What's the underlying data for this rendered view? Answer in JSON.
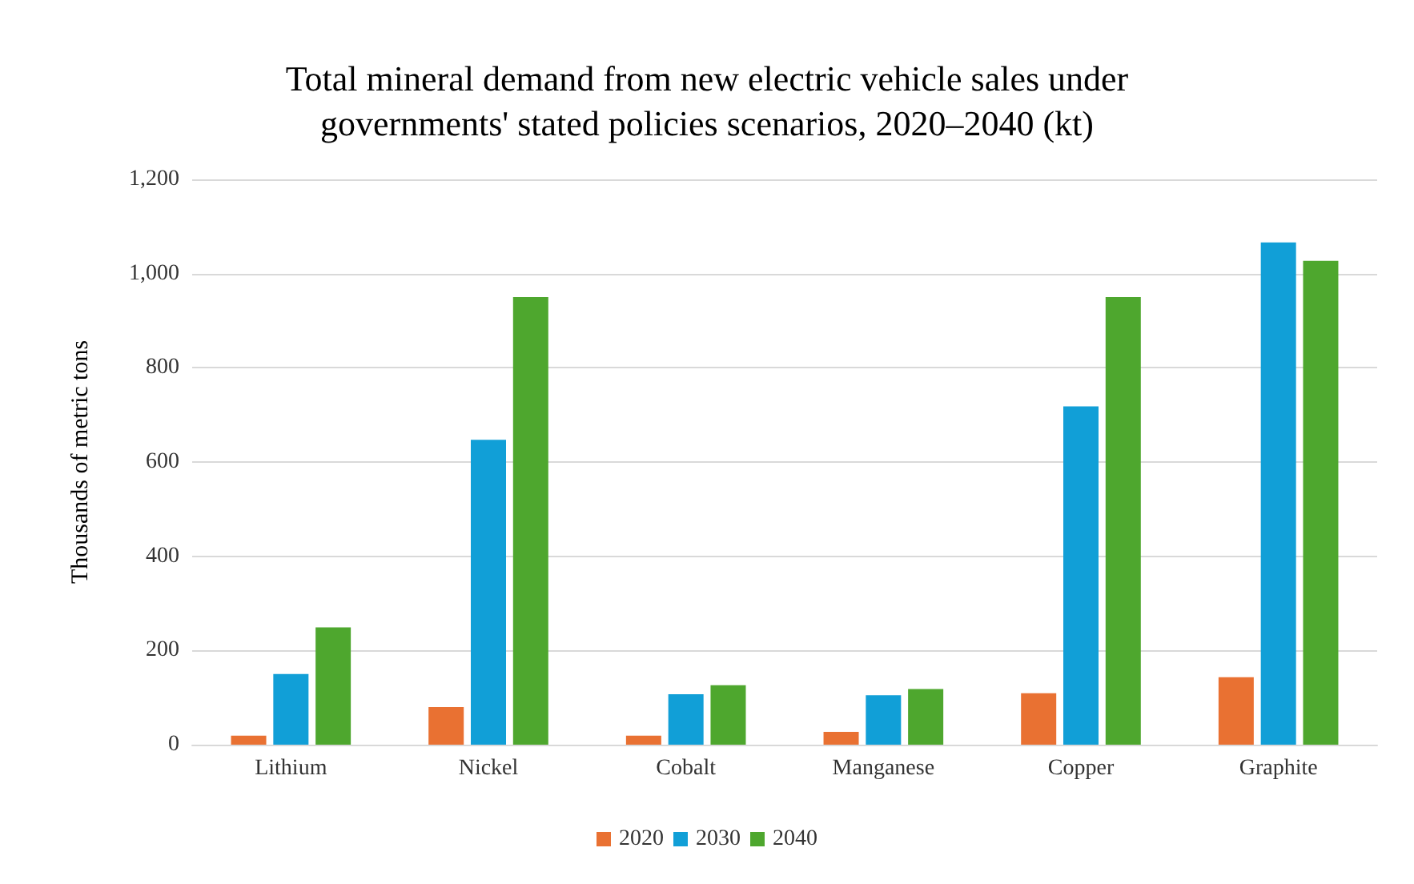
{
  "chart_data": {
    "type": "bar",
    "title": "Total mineral demand from new electric vehicle sales under\ngovernments' stated policies scenarios, 2020–2040 (kt)",
    "ylabel": "Thousands of metric tons",
    "categories": [
      "Lithium",
      "Nickel",
      "Cobalt",
      "Manganese",
      "Copper",
      "Graphite"
    ],
    "series": [
      {
        "name": "2020",
        "color": "#e97132",
        "values": [
          19,
          80,
          19,
          27,
          109,
          143
        ]
      },
      {
        "name": "2030",
        "color": "#119fd7",
        "values": [
          150,
          647,
          107,
          105,
          718,
          1066
        ]
      },
      {
        "name": "2040",
        "color": "#4ea72e",
        "values": [
          249,
          950,
          126,
          118,
          950,
          1027
        ]
      }
    ],
    "ylim": [
      0,
      1200
    ],
    "yticks": [
      {
        "value": 0,
        "label": "0"
      },
      {
        "value": 200,
        "label": "200"
      },
      {
        "value": 400,
        "label": "400"
      },
      {
        "value": 600,
        "label": "600"
      },
      {
        "value": 800,
        "label": "800"
      },
      {
        "value": 1000,
        "label": "1,000"
      },
      {
        "value": 1200,
        "label": "1,200"
      }
    ],
    "grid": "y",
    "legend": "bottom"
  }
}
